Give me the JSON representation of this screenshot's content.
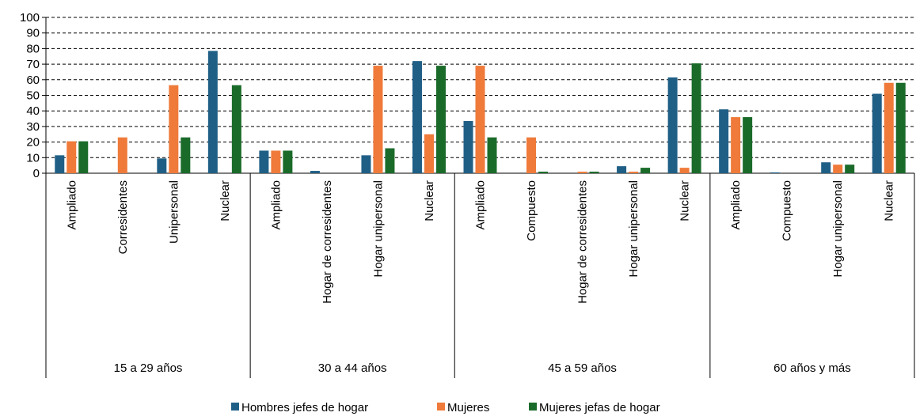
{
  "colors": {
    "hombres": "#1f5f86",
    "mujeres": "#ef7a3a",
    "jefas": "#1a6b2a"
  },
  "chart_data": {
    "type": "bar",
    "ylim": [
      0,
      100
    ],
    "y_ticks": [
      0,
      10,
      20,
      30,
      40,
      50,
      60,
      70,
      80,
      90,
      100
    ],
    "grid": "dashed horizontal",
    "legend_position": "bottom",
    "series": [
      {
        "name": "Hombres jefes de hogar",
        "color_key": "hombres"
      },
      {
        "name": "Mujeres",
        "color_key": "mujeres"
      },
      {
        "name": "Mujeres jefas de hogar",
        "color_key": "jefas"
      }
    ],
    "groups": [
      {
        "label": "15 a 29 años",
        "categories": [
          {
            "label": "Ampliado",
            "values": [
              11.5,
              20.5,
              20.5
            ]
          },
          {
            "label": "Corresidentes",
            "values": [
              0,
              23,
              0
            ]
          },
          {
            "label": "Unipersonal",
            "values": [
              9.5,
              56.5,
              23
            ]
          },
          {
            "label": "Nuclear",
            "values": [
              78.5,
              0,
              56.5
            ]
          }
        ]
      },
      {
        "label": "30 a 44 años",
        "categories": [
          {
            "label": "Ampliado",
            "values": [
              14.5,
              14.5,
              14.5
            ]
          },
          {
            "label": "Hogar de corresidentes",
            "values": [
              1.5,
              0,
              0
            ]
          },
          {
            "label": "Hogar unipersonal",
            "values": [
              11.5,
              69,
              16
            ]
          },
          {
            "label": "Nuclear",
            "values": [
              72,
              25,
              69
            ]
          }
        ]
      },
      {
        "label": "45 a 59 años",
        "categories": [
          {
            "label": "Ampliado",
            "values": [
              33.5,
              69,
              23
            ]
          },
          {
            "label": "Compuesto",
            "values": [
              0,
              23,
              1
            ]
          },
          {
            "label": "Hogar de corresidentes",
            "values": [
              0,
              1,
              1
            ]
          },
          {
            "label": "Hogar unipersonal",
            "values": [
              4.5,
              1,
              3.5
            ]
          },
          {
            "label": "Nuclear",
            "values": [
              61.5,
              3.5,
              70.5
            ]
          }
        ]
      },
      {
        "label": "60 años y más",
        "categories": [
          {
            "label": "Ampliado",
            "values": [
              41,
              36,
              36
            ]
          },
          {
            "label": "Compuesto",
            "values": [
              0.5,
              0,
              0
            ]
          },
          {
            "label": "Hogar unipersonal",
            "values": [
              7,
              5.5,
              5.5
            ]
          },
          {
            "label": "Nuclear",
            "values": [
              51,
              58,
              58
            ]
          }
        ]
      }
    ]
  }
}
